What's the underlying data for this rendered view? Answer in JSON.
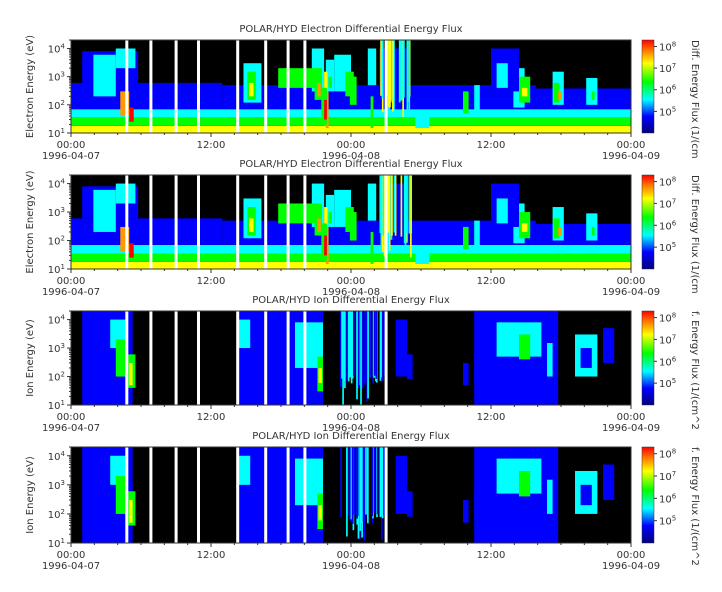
{
  "chart_data": [
    {
      "type": "heatmap",
      "title": "POLAR/HYD  Electron Differential Energy Flux",
      "ylabel": "Electron Energy (eV)",
      "cbar_label": "Diff. Energy Flux (1/(cm",
      "yticks": [
        "10^1",
        "10^2",
        "10^3",
        "10^4"
      ],
      "ylim": [
        10,
        20000
      ],
      "yscale": "log",
      "xlim": [
        "1996-04-07 00:00",
        "1996-04-09 00:00"
      ],
      "xticks": [
        {
          "time": "00:00",
          "date": "1996-04-07"
        },
        {
          "time": "12:00",
          "date": ""
        },
        {
          "time": "00:00",
          "date": "1996-04-08"
        },
        {
          "time": "12:00",
          "date": ""
        },
        {
          "time": "00:00",
          "date": "1996-04-09"
        }
      ],
      "cbar_ticks": [
        "10^5",
        "10^6",
        "10^7",
        "10^8"
      ],
      "cbar_scale": "log",
      "species": "electron"
    },
    {
      "type": "heatmap",
      "title": "POLAR/HYD  Electron Differential Energy Flux",
      "ylabel": "Electron Energy (eV)",
      "cbar_label": "Diff. Energy Flux (1/(cm",
      "yticks": [
        "10^1",
        "10^2",
        "10^3",
        "10^4"
      ],
      "ylim": [
        10,
        20000
      ],
      "yscale": "log",
      "xlim": [
        "1996-04-07 00:00",
        "1996-04-09 00:00"
      ],
      "xticks": [
        {
          "time": "00:00",
          "date": "1996-04-07"
        },
        {
          "time": "12:00",
          "date": ""
        },
        {
          "time": "00:00",
          "date": "1996-04-08"
        },
        {
          "time": "12:00",
          "date": ""
        },
        {
          "time": "00:00",
          "date": "1996-04-09"
        }
      ],
      "cbar_ticks": [
        "10^5",
        "10^6",
        "10^7",
        "10^8"
      ],
      "cbar_scale": "log",
      "species": "electron"
    },
    {
      "type": "heatmap",
      "title": "POLAR/HYD  Ion Differential Energy Flux",
      "ylabel": "Ion Energy (eV)",
      "cbar_label": "f. Energy Flux (1/(cm^2",
      "yticks": [
        "10^1",
        "10^2",
        "10^3",
        "10^4"
      ],
      "ylim": [
        10,
        20000
      ],
      "yscale": "log",
      "xlim": [
        "1996-04-07 00:00",
        "1996-04-09 00:00"
      ],
      "xticks": [
        {
          "time": "00:00",
          "date": "1996-04-07"
        },
        {
          "time": "12:00",
          "date": ""
        },
        {
          "time": "00:00",
          "date": "1996-04-08"
        },
        {
          "time": "12:00",
          "date": ""
        },
        {
          "time": "00:00",
          "date": "1996-04-09"
        }
      ],
      "cbar_ticks": [
        "10^5",
        "10^6",
        "10^7",
        "10^8"
      ],
      "cbar_scale": "log",
      "species": "ion"
    },
    {
      "type": "heatmap",
      "title": "POLAR/HYD  Ion Differential Energy Flux",
      "ylabel": "Ion Energy (eV)",
      "cbar_label": "f. Energy Flux (1/(cm^2",
      "yticks": [
        "10^1",
        "10^2",
        "10^3",
        "10^4"
      ],
      "ylim": [
        10,
        20000
      ],
      "yscale": "log",
      "xlim": [
        "1996-04-07 00:00",
        "1996-04-09 00:00"
      ],
      "xticks": [
        {
          "time": "00:00",
          "date": "1996-04-07"
        },
        {
          "time": "12:00",
          "date": ""
        },
        {
          "time": "00:00",
          "date": "1996-04-08"
        },
        {
          "time": "12:00",
          "date": ""
        },
        {
          "time": "00:00",
          "date": "1996-04-09"
        }
      ],
      "cbar_ticks": [
        "10^5",
        "10^6",
        "10^7",
        "10^8"
      ],
      "cbar_scale": "log",
      "species": "ion"
    }
  ]
}
